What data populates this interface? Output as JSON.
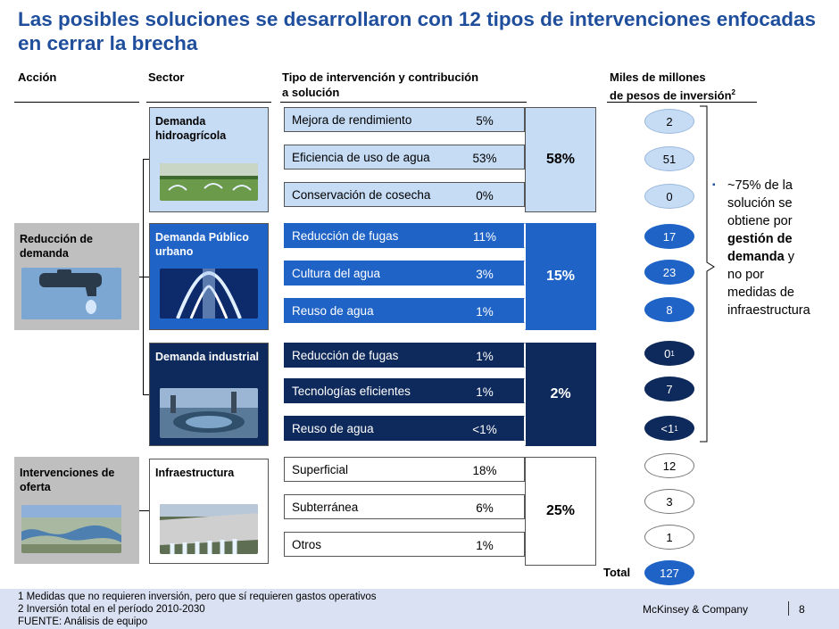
{
  "title": "Las posibles soluciones se desarrollaron con 12 tipos de intervenciones enfocadas en cerrar la brecha",
  "headers": {
    "accion": "Acción",
    "sector": "Sector",
    "tipo_line1": "Tipo de intervención y contribución",
    "tipo_line2": "a solución",
    "miles_line1": "Miles de millones",
    "miles_line2": "de pesos de inversión",
    "miles_sup": "2"
  },
  "actions": {
    "reduccion": "Reducción de demanda",
    "oferta": "Intervenciones de oferta"
  },
  "sectors": {
    "hidro": "Demanda hidroagrícola",
    "urbano": "Demanda Público urbano",
    "industrial": "Demanda industrial",
    "infra": "Infraestructura"
  },
  "interventions": [
    {
      "name": "Mejora de rendimiento",
      "pct": "5%"
    },
    {
      "name": "Eficiencia de uso de agua",
      "pct": "53%"
    },
    {
      "name": "Conservación de cosecha",
      "pct": "0%"
    },
    {
      "name": "Reducción de fugas",
      "pct": "11%"
    },
    {
      "name": "Cultura del agua",
      "pct": "3%"
    },
    {
      "name": "Reuso de agua",
      "pct": "1%"
    },
    {
      "name": "Reducción de fugas",
      "pct": "1%"
    },
    {
      "name": "Tecnologías eficientes",
      "pct": "1%"
    },
    {
      "name": "Reuso de agua",
      "pct": "<1%"
    },
    {
      "name": "Superficial",
      "pct": "18%"
    },
    {
      "name": "Subterránea",
      "pct": "6%"
    },
    {
      "name": "Otros",
      "pct": "1%"
    }
  ],
  "group_totals": [
    "58%",
    "15%",
    "2%",
    "25%"
  ],
  "investments": [
    {
      "value": "2",
      "sup": ""
    },
    {
      "value": "51",
      "sup": ""
    },
    {
      "value": "0",
      "sup": ""
    },
    {
      "value": "17",
      "sup": ""
    },
    {
      "value": "23",
      "sup": ""
    },
    {
      "value": "8",
      "sup": ""
    },
    {
      "value": "0",
      "sup": "1"
    },
    {
      "value": "7",
      "sup": ""
    },
    {
      "value": "<1",
      "sup": "1"
    },
    {
      "value": "12",
      "sup": ""
    },
    {
      "value": "3",
      "sup": ""
    },
    {
      "value": "1",
      "sup": ""
    }
  ],
  "total_label": "Total",
  "total_value": "127",
  "callout": {
    "bullet": "▪",
    "t1": "~75% de la",
    "t2": "solución se",
    "t3": "obtiene por",
    "t4_bold": "gestión de",
    "t5_bold": "demanda",
    "t5_rest": " y",
    "t6": "no por",
    "t7": "medidas  de",
    "t8": "infraestructura"
  },
  "footer": {
    "note1": "1 Medidas que no requieren inversión, pero que sí requieren gastos operativos",
    "note2": "2 Inversión total en el período 2010-2030",
    "source": "FUENTE:  Análisis de equipo",
    "company": "McKinsey & Company",
    "page": "8"
  },
  "colors": {
    "title": "#1f4e9c",
    "light_blue": "#c6dcf5",
    "mid_blue": "#1f63c6",
    "dark_navy": "#0e2a5c",
    "gray": "#bfbfbf",
    "footer_bg": "#d9e1f2"
  }
}
